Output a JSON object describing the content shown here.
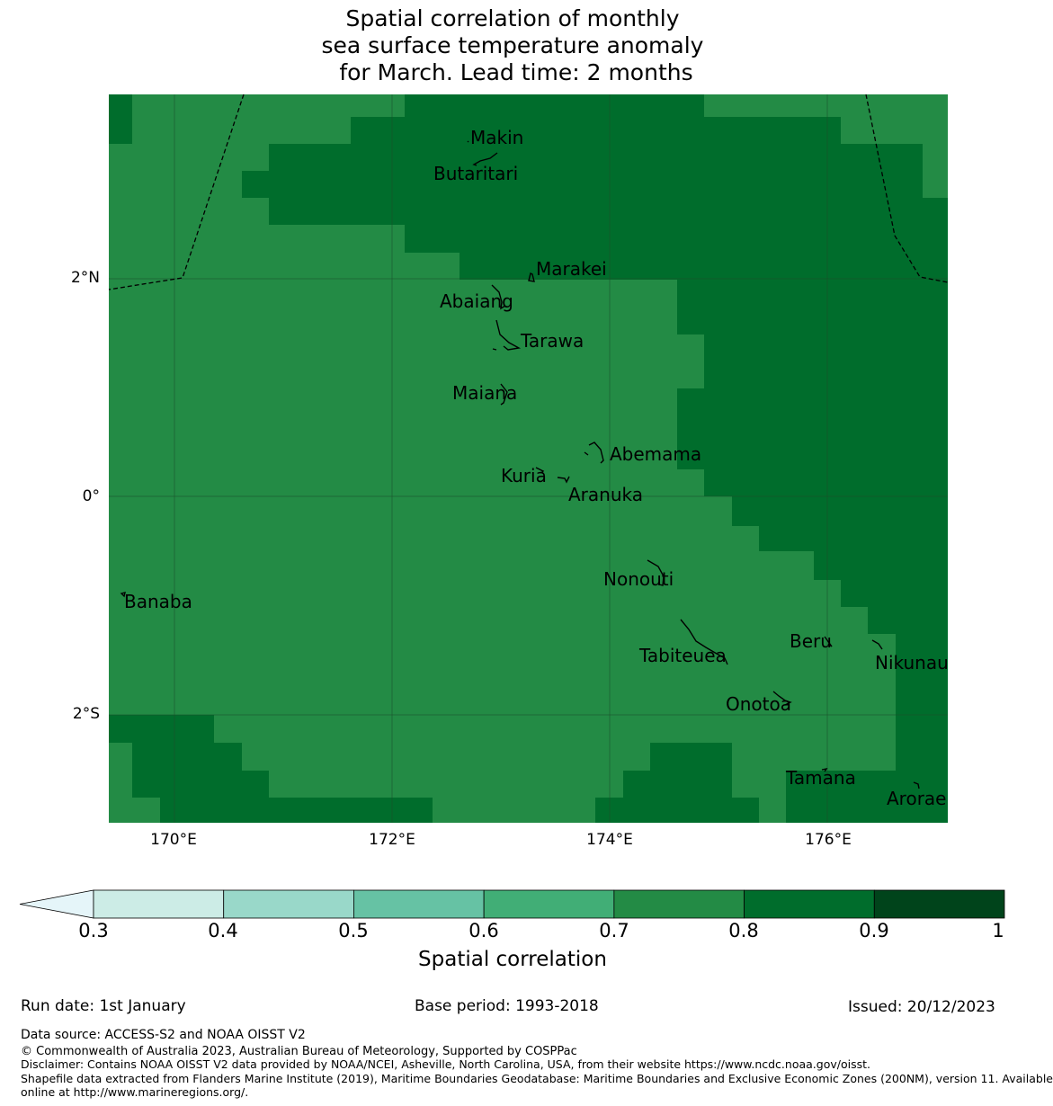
{
  "title": {
    "line1": "Spatial correlation of monthly",
    "line2": "sea surface temperature anomaly",
    "line3": " for March. Lead time: 2 months"
  },
  "colors": {
    "c07": "#238b45",
    "c08": "#006d2c",
    "c09": "#00441b",
    "border": "#000000",
    "grid": "#1b4f2a"
  },
  "colorbar": {
    "label": "Spatial correlation",
    "ticks": [
      "0.3",
      "0.4",
      "0.5",
      "0.6",
      "0.7",
      "0.8",
      "0.9",
      "1"
    ],
    "bins": [
      {
        "from": 0.3,
        "to": 0.4,
        "color": "#ccece6"
      },
      {
        "from": 0.4,
        "to": 0.5,
        "color": "#99d8c9"
      },
      {
        "from": 0.5,
        "to": 0.6,
        "color": "#66c2a4"
      },
      {
        "from": 0.6,
        "to": 0.7,
        "color": "#41ae76"
      },
      {
        "from": 0.7,
        "to": 0.8,
        "color": "#238b45"
      },
      {
        "from": 0.8,
        "to": 0.9,
        "color": "#006d2c"
      },
      {
        "from": 0.9,
        "to": 1.0,
        "color": "#00441b"
      }
    ],
    "under_color": "#e5f5f9"
  },
  "axes": {
    "lat_labels": [
      "2°N",
      "0°",
      "2°S"
    ],
    "lon_labels": [
      "170°E",
      "172°E",
      "174°E",
      "176°E"
    ]
  },
  "places": [
    {
      "name": "Makin",
      "lon": 173.0,
      "lat": 3.33
    },
    {
      "name": "Butaritari",
      "lon": 172.78,
      "lat": 3.0
    },
    {
      "name": "Marakei",
      "lon": 173.38,
      "lat": 2.12
    },
    {
      "name": "Abaiang",
      "lon": 172.8,
      "lat": 1.8
    },
    {
      "name": "Tarawa",
      "lon": 173.15,
      "lat": 1.44
    },
    {
      "name": "Maiana",
      "lon": 172.97,
      "lat": 0.95
    },
    {
      "name": "Abemama",
      "lon": 173.85,
      "lat": 0.4
    },
    {
      "name": "Kuria",
      "lon": 173.4,
      "lat": 0.2
    },
    {
      "name": "Aranuka",
      "lon": 173.6,
      "lat": 0.05
    },
    {
      "name": "Nonouti",
      "lon": 174.35,
      "lat": -0.7
    },
    {
      "name": "Banaba",
      "lon": 169.54,
      "lat": -0.86
    },
    {
      "name": "Tabiteuea",
      "lon": 174.8,
      "lat": -1.45
    },
    {
      "name": "Beru",
      "lon": 175.99,
      "lat": -1.33
    },
    {
      "name": "Nikunau",
      "lon": 176.45,
      "lat": -1.35
    },
    {
      "name": "Onotoa",
      "lon": 175.56,
      "lat": -1.82
    },
    {
      "name": "Tamana",
      "lon": 175.97,
      "lat": -2.5
    },
    {
      "name": "Arorae",
      "lon": 176.82,
      "lat": -2.64
    }
  ],
  "meta": {
    "run_date": "Run date: 1st January",
    "base_period": "Base period: 1993-2018",
    "issued": "Issued: 20/12/2023"
  },
  "footer": {
    "data_source": "Data source: ACCESS-S2 and NOAA OISST V2",
    "copyright": "© Commonwealth of Australia 2023, Australian Bureau of Meteorology, Supported by COSPPac",
    "disclaimer": "Disclaimer: Contains NOAA OISST V2 data provided by NOAA/NCEI, Asheville, North Carolina, USA, from their website https://www.ncdc.noaa.gov/oisst.",
    "shapefile1": "Shapefile data extracted from Flanders Marine Institute (2019), Maritime Boundaries Geodatabase: Maritime Boundaries and Exclusive Economic Zones (200NM), version 11. Available",
    "shapefile2": "online at http://www.marineregions.org/."
  }
}
